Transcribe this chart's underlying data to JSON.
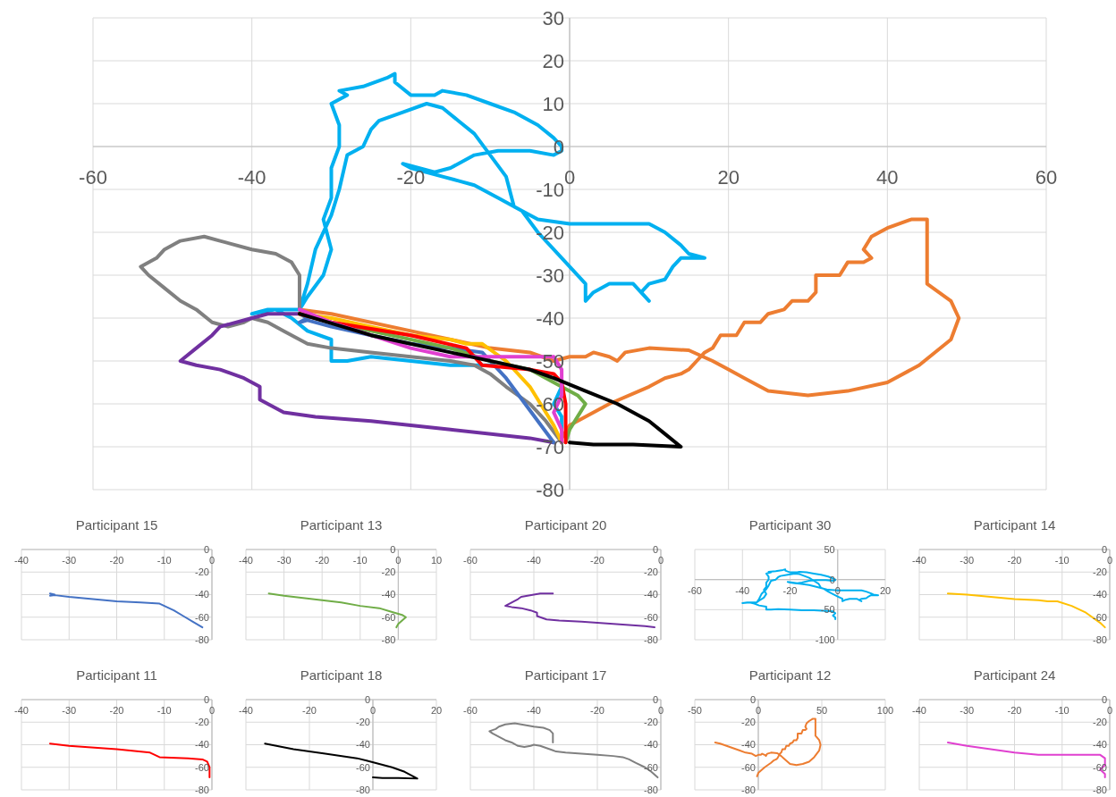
{
  "chart_data": [
    {
      "type": "line",
      "xlim": [
        -60,
        60
      ],
      "ylim": [
        -80,
        30
      ],
      "xticks": [
        -60,
        -40,
        -20,
        0,
        20,
        40,
        60
      ],
      "yticks": [
        -80,
        -70,
        -60,
        -50,
        -40,
        -30,
        -20,
        -10,
        0,
        10,
        20,
        30
      ],
      "grid": true,
      "series": [
        {
          "color": "#00b0f0",
          "x": [
            -34,
            -33,
            -32,
            -30,
            -29,
            -28,
            -26,
            -25,
            -24,
            -21,
            -18,
            -16,
            -14,
            -12,
            -10,
            -8,
            -7,
            -4,
            0,
            5,
            10,
            12,
            14,
            15,
            17,
            14,
            13,
            12,
            10,
            9,
            10,
            8,
            5,
            3,
            2,
            2,
            0,
            -2,
            -4,
            -6,
            -9,
            -12,
            -14,
            -16,
            -18,
            -20,
            -21,
            -19,
            -17,
            -15,
            -12,
            -9,
            -5,
            -2,
            -1,
            -1,
            -2,
            -4,
            -7,
            -10,
            -13,
            -16,
            -17,
            -20,
            -22,
            -22,
            -23,
            -26,
            -29,
            -28,
            -30,
            -29,
            -29,
            -30,
            -30,
            -31,
            -30,
            -31,
            -33,
            -34,
            -38,
            -40,
            -37,
            -35,
            -33,
            -30,
            -30,
            -28,
            -25,
            -20,
            -15,
            -10,
            -5,
            -2,
            -1,
            -2,
            -1,
            -1
          ],
          "values": [
            -38,
            -32,
            -24,
            -16,
            -10,
            -2,
            0,
            4,
            6,
            8,
            10,
            9,
            6,
            3,
            -2,
            -7,
            -14,
            -17,
            -18,
            -18,
            -18,
            -20,
            -23,
            -25,
            -26,
            -26,
            -28,
            -31,
            -32,
            -34,
            -36,
            -32,
            -32,
            -34,
            -36,
            -32,
            -28,
            -24,
            -20,
            -15,
            -12,
            -9,
            -8,
            -7,
            -6,
            -5,
            -4,
            -5,
            -6,
            -5,
            -2,
            -1,
            -1,
            -2,
            -1,
            0,
            2,
            5,
            8,
            10,
            12,
            13,
            12,
            12,
            15,
            17,
            16,
            14,
            13,
            12,
            10,
            5,
            0,
            -5,
            -12,
            -17,
            -24,
            -30,
            -35,
            -38,
            -38,
            -39,
            -38,
            -40,
            -43,
            -45,
            -50,
            -50,
            -49,
            -50,
            -51,
            -51,
            null,
            null,
            -56,
            -60,
            -63,
            -66
          ]
        },
        {
          "color": "#ed7d31",
          "x": [
            -34,
            -30,
            -20,
            -15,
            -10,
            -5,
            -2,
            0,
            2,
            3,
            5,
            6,
            7,
            10,
            15,
            18,
            20,
            22,
            25,
            30,
            35,
            40,
            44,
            48,
            49,
            48,
            45,
            45,
            45,
            43,
            40,
            38,
            37,
            38,
            37,
            35,
            34,
            31,
            31,
            30,
            28,
            27,
            25,
            24,
            22,
            21,
            19,
            18,
            17,
            16,
            15,
            14,
            12,
            10,
            5,
            0,
            -1
          ],
          "values": [
            -38,
            -39,
            -43,
            -45,
            -47,
            -48,
            -50,
            -49,
            -49,
            -48,
            -49,
            -50,
            -48,
            -47,
            -47.5,
            -50,
            -52,
            -54,
            -57,
            -58,
            -57,
            -55,
            -51,
            -45,
            -40,
            -36,
            -32,
            -25,
            -17,
            -17,
            -19,
            -21,
            -24,
            -26,
            -27,
            -27,
            -30,
            -30,
            -34,
            -36,
            -36,
            -38,
            -39,
            -41,
            -41,
            -44,
            -44,
            -47,
            -48,
            -50,
            -52,
            -53,
            -54,
            -56,
            -60,
            -65,
            -68
          ]
        },
        {
          "color": "#808080",
          "x": [
            -34,
            -34,
            -35,
            -37,
            -40,
            -44,
            -46,
            -49,
            -51,
            -52,
            -54,
            -53,
            -51,
            -49,
            -47,
            -45,
            -43,
            -41,
            -40,
            -38,
            -36,
            -34,
            -33,
            -30,
            -25,
            -20,
            -15,
            -12,
            -10,
            -8,
            -5,
            -3,
            -1
          ],
          "values": [
            -38,
            -30,
            -27,
            -25,
            -24,
            -22,
            -21,
            -22,
            -24,
            -26,
            -28,
            -30,
            -33,
            -36,
            -38,
            -41,
            -42,
            -41,
            -40,
            -41,
            -43,
            -45,
            -46,
            -47,
            -48,
            -49,
            -50,
            -51,
            -53,
            -56,
            -60,
            -64,
            -69
          ]
        },
        {
          "color": "#7030a0",
          "x": [
            -34,
            -38,
            -40,
            -44,
            -45,
            -47,
            -49,
            -47,
            -44,
            -41,
            -39,
            -39,
            -36,
            -32,
            -25,
            -15,
            -5,
            -2
          ],
          "values": [
            -39,
            -39,
            -40,
            -42,
            -44,
            -47,
            -50,
            -51,
            -52,
            -54,
            -56,
            -59,
            -62,
            -63,
            -64,
            -66,
            -68,
            -69
          ]
        },
        {
          "color": "#4472c4",
          "x": [
            -34,
            -33,
            -34,
            -33,
            -30,
            -25,
            -20,
            -15,
            -11,
            -10,
            -8,
            -6,
            -4,
            -2
          ],
          "values": [
            -39,
            -40,
            -41,
            -40.5,
            -42,
            -44,
            -46,
            -47,
            -48,
            -50,
            -54,
            -59,
            -64,
            -69
          ]
        },
        {
          "color": "#70ad47",
          "x": [
            -34,
            -30,
            -25,
            -20,
            -15,
            -10,
            -5,
            -2,
            1,
            2,
            1,
            0,
            -0.5
          ],
          "values": [
            -39,
            -41,
            -43,
            -45,
            -47,
            -50,
            -52,
            -55,
            -58,
            -60,
            -63,
            -66,
            -69
          ]
        },
        {
          "color": "#ffc000",
          "x": [
            -34,
            -30,
            -25,
            -20,
            -15,
            -13,
            -11,
            -8,
            -5,
            -2,
            -1
          ],
          "values": [
            -39,
            -40,
            -42,
            -44,
            -45,
            -46,
            -46,
            -50,
            -56,
            -65,
            -69
          ]
        },
        {
          "color": "#ff0000",
          "x": [
            -34,
            -30,
            -20,
            -13,
            -11,
            -5,
            -2,
            -1,
            -0.5,
            -0.5
          ],
          "values": [
            -39,
            -41,
            -44,
            -47,
            -51,
            -52,
            -53,
            -55,
            -60,
            -69
          ]
        },
        {
          "color": "#e040d0",
          "x": [
            -34,
            -30,
            -25,
            -20,
            -15,
            -10,
            -5,
            -2,
            -1,
            -1,
            -2,
            -1,
            -1
          ],
          "values": [
            -38,
            -41,
            -44,
            -47,
            -49,
            -49,
            -49,
            -49,
            -52,
            -58,
            -62,
            -66,
            -69
          ]
        },
        {
          "color": "#000000",
          "x": [
            -34,
            -25,
            -15,
            -5,
            -2,
            2,
            6,
            10,
            12,
            14,
            8,
            3,
            0
          ],
          "values": [
            -39,
            -44,
            -48,
            -52,
            -54,
            -57,
            -60,
            -64,
            -67,
            -70,
            -69.5,
            -69.5,
            -69
          ]
        }
      ]
    },
    {
      "type": "line",
      "title": "Participant 15",
      "xlim": [
        -40,
        0
      ],
      "ylim": [
        -80,
        0
      ],
      "xticks": [
        -40,
        -30,
        -20,
        -10,
        0
      ],
      "yticks": [
        -80,
        -60,
        -40,
        -20,
        0
      ],
      "grid": true,
      "series": [
        {
          "color": "#4472c4",
          "x": [
            -34,
            -33,
            -34,
            -33,
            -30,
            -25,
            -20,
            -15,
            -11,
            -10,
            -8,
            -6,
            -4,
            -2
          ],
          "values": [
            -39,
            -40,
            -41,
            -40.5,
            -42,
            -44,
            -46,
            -47,
            -48,
            -50,
            -54,
            -59,
            -64,
            -69
          ]
        }
      ]
    },
    {
      "type": "line",
      "title": "Participant 13",
      "xlim": [
        -40,
        10
      ],
      "ylim": [
        -80,
        0
      ],
      "xticks": [
        -40,
        -30,
        -20,
        -10,
        0,
        10
      ],
      "yticks": [
        -80,
        -60,
        -40,
        -20,
        0
      ],
      "grid": true,
      "series": [
        {
          "color": "#70ad47",
          "x": [
            -34,
            -30,
            -25,
            -20,
            -15,
            -10,
            -5,
            -2,
            1,
            2,
            1,
            0,
            -0.5
          ],
          "values": [
            -39,
            -41,
            -43,
            -45,
            -47,
            -50,
            -52,
            -55,
            -58,
            -60,
            -63,
            -66,
            -69
          ]
        }
      ]
    },
    {
      "type": "line",
      "title": "Participant 20",
      "xlim": [
        -60,
        0
      ],
      "ylim": [
        -80,
        0
      ],
      "xticks": [
        -60,
        -40,
        -20,
        0
      ],
      "yticks": [
        -80,
        -60,
        -40,
        -20,
        0
      ],
      "grid": true,
      "series": [
        {
          "color": "#7030a0",
          "x": [
            -34,
            -38,
            -40,
            -44,
            -45,
            -47,
            -49,
            -47,
            -44,
            -41,
            -39,
            -39,
            -36,
            -32,
            -25,
            -15,
            -5,
            -2
          ],
          "values": [
            -39,
            -39,
            -40,
            -42,
            -44,
            -47,
            -50,
            -51,
            -52,
            -54,
            -56,
            -59,
            -62,
            -63,
            -64,
            -66,
            -68,
            -69
          ]
        }
      ]
    },
    {
      "type": "line",
      "title": "Participant 30",
      "xlim": [
        -60,
        20
      ],
      "ylim": [
        -100,
        50
      ],
      "xticks": [
        -60,
        -40,
        -20,
        0,
        20
      ],
      "yticks": [
        -100,
        -50,
        0,
        50
      ],
      "grid": true,
      "series": [
        {
          "color": "#00b0f0",
          "x": [
            -34,
            -33,
            -32,
            -30,
            -29,
            -28,
            -26,
            -25,
            -24,
            -21,
            -18,
            -16,
            -14,
            -12,
            -10,
            -8,
            -7,
            -4,
            0,
            5,
            10,
            12,
            14,
            15,
            17,
            14,
            13,
            12,
            10,
            9,
            10,
            8,
            5,
            3,
            2,
            2,
            0,
            -2,
            -4,
            -6,
            -9,
            -12,
            -14,
            -16,
            -18,
            -20,
            -21,
            -19,
            -17,
            -15,
            -12,
            -9,
            -5,
            -2,
            -1,
            -1,
            -2,
            -4,
            -7,
            -10,
            -13,
            -16,
            -17,
            -20,
            -22,
            -22,
            -23,
            -26,
            -29,
            -28,
            -30,
            -29,
            -29,
            -30,
            -30,
            -31,
            -30,
            -31,
            -33,
            -34,
            -38,
            -40,
            -37,
            -35,
            -33,
            -30,
            -30,
            -28,
            -25,
            -20,
            -15,
            -10,
            -5,
            -2,
            -1,
            -2,
            -1,
            -1
          ],
          "values": [
            -38,
            -32,
            -24,
            -16,
            -10,
            -2,
            0,
            4,
            6,
            8,
            10,
            9,
            6,
            3,
            -2,
            -7,
            -14,
            -17,
            -18,
            -18,
            -18,
            -20,
            -23,
            -25,
            -26,
            -26,
            -28,
            -31,
            -32,
            -34,
            -36,
            -32,
            -32,
            -34,
            -36,
            -32,
            -28,
            -24,
            -20,
            -15,
            -12,
            -9,
            -8,
            -7,
            -6,
            -5,
            -4,
            -5,
            -6,
            -5,
            -2,
            -1,
            -1,
            -2,
            -1,
            0,
            2,
            5,
            8,
            10,
            12,
            13,
            12,
            12,
            15,
            17,
            16,
            14,
            13,
            12,
            10,
            5,
            0,
            -5,
            -12,
            -17,
            -24,
            -30,
            -35,
            -38,
            -38,
            -39,
            -38,
            -40,
            -43,
            -45,
            -50,
            -50,
            -49,
            -50,
            -51,
            -51,
            -52,
            -53,
            -56,
            -60,
            -63,
            -66
          ]
        }
      ]
    },
    {
      "type": "line",
      "title": "Participant 14",
      "xlim": [
        -40,
        0
      ],
      "ylim": [
        -80,
        0
      ],
      "xticks": [
        -40,
        -30,
        -20,
        -10,
        0
      ],
      "yticks": [
        -80,
        -60,
        -40,
        -20,
        0
      ],
      "grid": true,
      "series": [
        {
          "color": "#ffc000",
          "x": [
            -34,
            -30,
            -25,
            -20,
            -15,
            -13,
            -11,
            -8,
            -5,
            -2,
            -1
          ],
          "values": [
            -39,
            -40,
            -42,
            -44,
            -45,
            -46,
            -46,
            -50,
            -56,
            -65,
            -69
          ]
        }
      ]
    },
    {
      "type": "line",
      "title": "Participant 11",
      "xlim": [
        -40,
        0
      ],
      "ylim": [
        -80,
        0
      ],
      "xticks": [
        -40,
        -30,
        -20,
        -10,
        0
      ],
      "yticks": [
        -80,
        -60,
        -40,
        -20,
        0
      ],
      "grid": true,
      "series": [
        {
          "color": "#ff0000",
          "x": [
            -34,
            -30,
            -20,
            -13,
            -11,
            -5,
            -2,
            -1,
            -0.5,
            -0.5
          ],
          "values": [
            -39,
            -41,
            -44,
            -47,
            -51,
            -52,
            -53,
            -55,
            -60,
            -69
          ]
        }
      ]
    },
    {
      "type": "line",
      "title": "Participant 18",
      "xlim": [
        -40,
        20
      ],
      "ylim": [
        -80,
        0
      ],
      "xticks": [
        -40,
        -20,
        0,
        20
      ],
      "yticks": [
        -80,
        -60,
        -40,
        -20,
        0
      ],
      "grid": true,
      "series": [
        {
          "color": "#000000",
          "x": [
            -34,
            -25,
            -15,
            -5,
            -2,
            2,
            6,
            10,
            12,
            14,
            8,
            3,
            0
          ],
          "values": [
            -39,
            -44,
            -48,
            -52,
            -54,
            -57,
            -60,
            -64,
            -67,
            -70,
            -69.5,
            -69.5,
            -69
          ]
        }
      ]
    },
    {
      "type": "line",
      "title": "Participant 17",
      "xlim": [
        -60,
        0
      ],
      "ylim": [
        -80,
        0
      ],
      "xticks": [
        -60,
        -40,
        -20,
        0
      ],
      "yticks": [
        -80,
        -60,
        -40,
        -20,
        0
      ],
      "grid": true,
      "series": [
        {
          "color": "#808080",
          "x": [
            -34,
            -34,
            -35,
            -37,
            -40,
            -44,
            -46,
            -49,
            -51,
            -52,
            -54,
            -53,
            -51,
            -49,
            -47,
            -45,
            -43,
            -41,
            -40,
            -38,
            -36,
            -34,
            -33,
            -30,
            -25,
            -20,
            -15,
            -12,
            -10,
            -8,
            -5,
            -3,
            -1
          ],
          "values": [
            -38,
            -30,
            -27,
            -25,
            -24,
            -22,
            -21,
            -22,
            -24,
            -26,
            -28,
            -30,
            -33,
            -36,
            -38,
            -41,
            -42,
            -41,
            -40,
            -41,
            -43,
            -45,
            -46,
            -47,
            -48,
            -49,
            -50,
            -51,
            -53,
            -56,
            -60,
            -64,
            -69
          ]
        }
      ]
    },
    {
      "type": "line",
      "title": "Participant 12",
      "xlim": [
        -50,
        100
      ],
      "ylim": [
        -80,
        0
      ],
      "xticks": [
        -50,
        0,
        50,
        100
      ],
      "yticks": [
        -80,
        -60,
        -40,
        -20,
        0
      ],
      "grid": true,
      "series": [
        {
          "color": "#ed7d31",
          "x": [
            -34,
            -30,
            -20,
            -15,
            -10,
            -5,
            -2,
            0,
            2,
            3,
            5,
            6,
            7,
            10,
            15,
            18,
            20,
            22,
            25,
            30,
            35,
            40,
            44,
            48,
            49,
            48,
            45,
            45,
            45,
            43,
            40,
            38,
            37,
            38,
            37,
            35,
            34,
            31,
            31,
            30,
            28,
            27,
            25,
            24,
            22,
            21,
            19,
            18,
            17,
            16,
            15,
            14,
            12,
            10,
            5,
            0,
            -1
          ],
          "values": [
            -38,
            -39,
            -43,
            -45,
            -47,
            -48,
            -50,
            -49,
            -49,
            -48,
            -49,
            -50,
            -48,
            -47,
            -47.5,
            -50,
            -52,
            -54,
            -57,
            -58,
            -57,
            -55,
            -51,
            -45,
            -40,
            -36,
            -32,
            -25,
            -17,
            -17,
            -19,
            -21,
            -24,
            -26,
            -27,
            -27,
            -30,
            -30,
            -34,
            -36,
            -36,
            -38,
            -39,
            -41,
            -41,
            -44,
            -44,
            -47,
            -48,
            -50,
            -52,
            -53,
            -54,
            -56,
            -60,
            -65,
            -68
          ]
        }
      ]
    },
    {
      "type": "line",
      "title": "Participant 24",
      "xlim": [
        -40,
        0
      ],
      "ylim": [
        -80,
        0
      ],
      "xticks": [
        -40,
        -30,
        -20,
        -10,
        0
      ],
      "yticks": [
        -80,
        -60,
        -40,
        -20,
        0
      ],
      "grid": true,
      "series": [
        {
          "color": "#e040d0",
          "x": [
            -34,
            -30,
            -25,
            -20,
            -15,
            -10,
            -5,
            -2,
            -1,
            -1,
            -2,
            -1,
            -1
          ],
          "values": [
            -38,
            -41,
            -44,
            -47,
            -49,
            -49,
            -49,
            -49,
            -52,
            -58,
            -62,
            -66,
            -69
          ]
        }
      ]
    }
  ]
}
